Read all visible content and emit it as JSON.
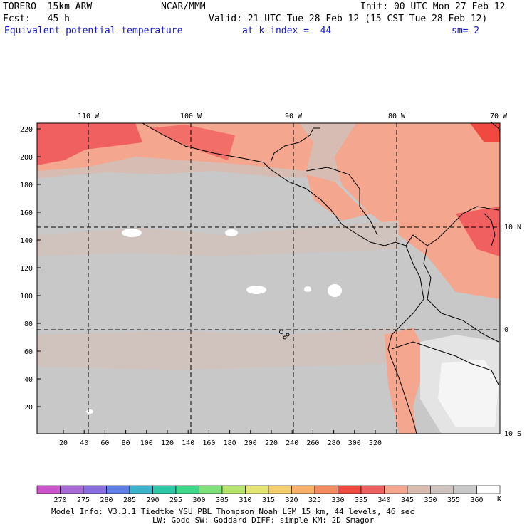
{
  "header": {
    "model": "TORERO  15km ARW",
    "center": "NCAR/MMM",
    "init": "Init: 00 UTC Mon 27 Feb 12",
    "fcst": "Fcst:   45 h",
    "valid": "Valid: 21 UTC Tue 28 Feb 12 (15 CST Tue 28 Feb 12)",
    "field": "Equivalent potential temperature",
    "level": "at k-index =  44",
    "smooth": "sm= 2"
  },
  "map": {
    "top_axis": [
      "110 W",
      "100 W",
      "90 W",
      "80 W",
      "70 W"
    ],
    "right_axis": [
      "10 N",
      "0",
      "10 S"
    ],
    "left_axis": [
      "220",
      "200",
      "180",
      "160",
      "140",
      "120",
      "100",
      "80",
      "60",
      "40",
      "20"
    ],
    "bottom_axis": [
      "20",
      "40",
      "60",
      "80",
      "100",
      "120",
      "140",
      "160",
      "180",
      "200",
      "220",
      "240",
      "260",
      "280",
      "300",
      "320"
    ]
  },
  "colorbar": {
    "labels": [
      "270",
      "275",
      "280",
      "285",
      "290",
      "295",
      "300",
      "305",
      "310",
      "315",
      "320",
      "325",
      "330",
      "335",
      "340",
      "345",
      "350",
      "355",
      "360"
    ],
    "unit": "K",
    "colors": [
      "#cc55cc",
      "#a96bd6",
      "#8a6fe0",
      "#5f7fe6",
      "#3cb4cc",
      "#2bc9a8",
      "#3cd98a",
      "#7de07a",
      "#b6e66e",
      "#e6e672",
      "#f5cf6e",
      "#f7b067",
      "#f48a5f",
      "#f04a40",
      "#f06060",
      "#f4a68e",
      "#d9bdb0",
      "#cfc4c0",
      "#c9c9c9",
      "#ffffff"
    ]
  },
  "footer": {
    "line1": "Model Info: V3.3.1    Tiedtke YSU PBL  Thompson    Noah LSM  15 km,   44 levels,   46 sec",
    "line2": "LW: Godd SW: Goddard DIFF: simple KM: 2D Smagor"
  }
}
